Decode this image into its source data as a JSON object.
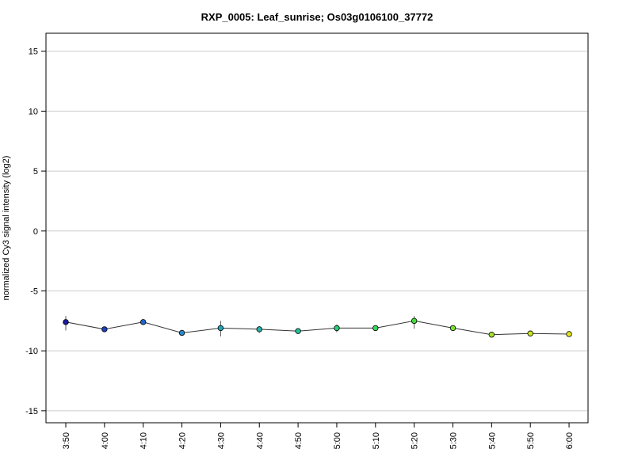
{
  "chart_data": {
    "type": "line",
    "title": "RXP_0005: Leaf_sunrise; Os03g0106100_37772",
    "xlabel": "",
    "ylabel": "normalized Cy3 signal intensity (log2)",
    "ylim": [
      -16,
      16.5
    ],
    "yticks": [
      15,
      10,
      5,
      0,
      -5,
      -10,
      -15
    ],
    "grid": true,
    "categories": [
      "3:50",
      "4:00",
      "4:10",
      "4:20",
      "4:30",
      "4:40",
      "4:50",
      "5:00",
      "5:10",
      "5:20",
      "5:30",
      "5:40",
      "5:50",
      "6:00"
    ],
    "values": [
      -7.6,
      -8.2,
      -7.6,
      -8.5,
      -8.1,
      -8.2,
      -8.35,
      -8.1,
      -8.1,
      -7.5,
      -8.1,
      -8.65,
      -8.55,
      -8.6
    ],
    "error_low": [
      -8.3,
      -8.3,
      -7.7,
      -8.6,
      -8.8,
      -8.5,
      -8.4,
      -8.45,
      -8.2,
      -8.15,
      -8.2,
      -8.75,
      -8.65,
      -8.7
    ],
    "error_high": [
      -7.1,
      -8.1,
      -7.5,
      -8.4,
      -7.5,
      -7.95,
      -8.3,
      -7.8,
      -8.0,
      -7.1,
      -8.0,
      -8.55,
      -8.45,
      -8.5
    ],
    "point_colors": [
      "#1a1a9e",
      "#1f3fbf",
      "#2266cc",
      "#2688cc",
      "#22a3b8",
      "#22b5a8",
      "#22c096",
      "#2acc7a",
      "#33d65c",
      "#44dd3a",
      "#77e02e",
      "#a6e326",
      "#cce61f",
      "#e6e619"
    ]
  }
}
